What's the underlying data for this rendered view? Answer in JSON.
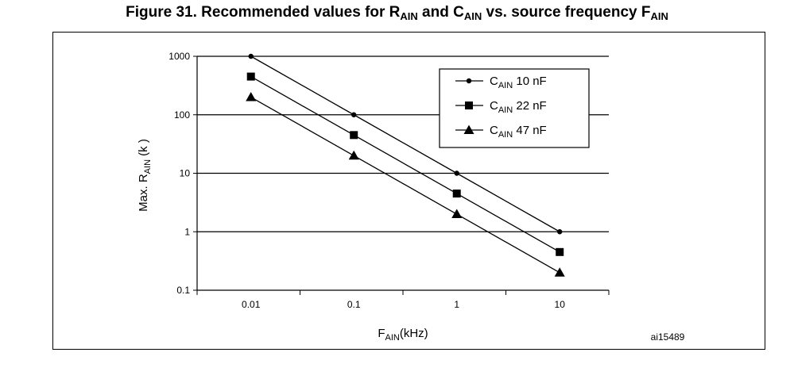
{
  "figure": {
    "title_prefix": "Figure 31. Recommended values for R",
    "title_sub1": "AIN",
    "title_mid": " and C",
    "title_sub2": "AIN",
    "title_mid2": " vs. source frequency F",
    "title_sub3": "AIN",
    "code": "ai15489"
  },
  "chart_data": {
    "type": "line",
    "xscale": "log",
    "yscale": "log",
    "x": [
      0.01,
      0.1,
      1,
      10
    ],
    "x_tick_labels": [
      "0.01",
      "0.1",
      "1",
      "10"
    ],
    "y_tick_labels": [
      "0.1",
      "1",
      "10",
      "100",
      "1000"
    ],
    "xlim": [
      0.003,
      30
    ],
    "ylim": [
      0.1,
      1000
    ],
    "xlabel_main": "F",
    "xlabel_sub": "AIN",
    "xlabel_suffix": "(kHz)",
    "ylabel_main": "Max. R",
    "ylabel_sub": "AIN",
    "ylabel_suffix": " (k   )",
    "grid": "horizontal",
    "legend_position": "top-right",
    "series": [
      {
        "name": "C AIN 10 nF",
        "legend_main": "C",
        "legend_sub": "AIN",
        "legend_suffix": " 10 nF",
        "marker": "circle",
        "values": [
          1000,
          100,
          10,
          1
        ]
      },
      {
        "name": "C AIN 22 nF",
        "legend_main": "C",
        "legend_sub": "AIN",
        "legend_suffix": " 22 nF",
        "marker": "square",
        "values": [
          450,
          45,
          4.5,
          0.45
        ]
      },
      {
        "name": "C AIN 47 nF",
        "legend_main": "C",
        "legend_sub": "AIN",
        "legend_suffix": " 47 nF",
        "marker": "triangle",
        "values": [
          200,
          20,
          2,
          0.2
        ]
      }
    ]
  }
}
